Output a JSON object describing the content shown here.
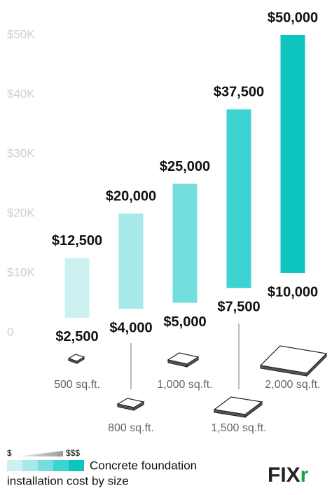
{
  "chart_data": {
    "type": "range-bar",
    "categories": [
      "500 sq.ft.",
      "800 sq.ft.",
      "1,000 sq.ft.",
      "1,500 sq.ft.",
      "2,000 sq.ft."
    ],
    "low_values": [
      2500,
      4000,
      5000,
      7500,
      10000
    ],
    "low_value_labels": [
      "$2,500",
      "$4,000",
      "$5,000",
      "$7,500",
      "$10,000"
    ],
    "high_values": [
      12500,
      20000,
      25000,
      37500,
      50000
    ],
    "high_value_labels": [
      "$12,500",
      "$20,000",
      "$25,000",
      "$37,500",
      "$50,000"
    ],
    "colors": [
      "#cdf1f1",
      "#a6e9e9",
      "#74dddd",
      "#3dd3d2",
      "#0dc4c1"
    ],
    "ylim": [
      0,
      50000
    ],
    "yticks": [
      0,
      {
        "value": 10000,
        "label": "$10K"
      },
      {
        "value": 20000,
        "label": "$20K"
      },
      {
        "value": 30000,
        "label": "$30K"
      },
      {
        "value": 40000,
        "label": "$40K"
      },
      {
        "value": 50000,
        "label": "$50K"
      }
    ],
    "grid": false,
    "legend": {
      "min_label": "$",
      "max_label": "$$$",
      "text": [
        "Concrete foundation",
        "installation cost by size"
      ]
    },
    "logo": [
      "FIX",
      "r"
    ]
  }
}
